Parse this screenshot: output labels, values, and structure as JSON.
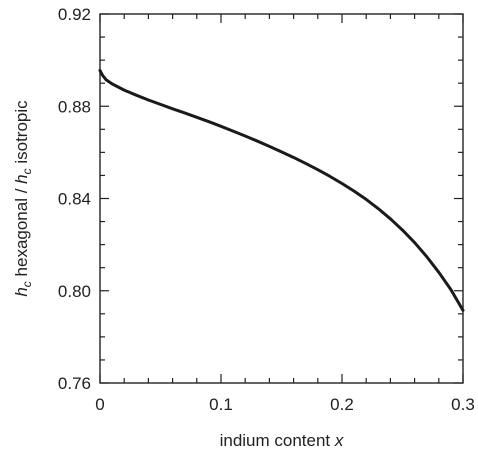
{
  "chart_data": {
    "type": "line",
    "title": "",
    "xlabel": {
      "text": "indium content ",
      "var": "x"
    },
    "ylabel": {
      "parts": [
        {
          "text": "h",
          "style": "italic"
        },
        {
          "text": "c",
          "style": "sub"
        },
        {
          "text": " hexagonal / ",
          "style": "normal"
        },
        {
          "text": "h",
          "style": "italic"
        },
        {
          "text": "c",
          "style": "sub"
        },
        {
          "text": " isotropic",
          "style": "normal"
        }
      ]
    },
    "xlim": [
      0,
      0.3
    ],
    "ylim": [
      0.76,
      0.92
    ],
    "xticks": [
      0,
      0.1,
      0.2,
      0.3
    ],
    "xtick_labels": [
      "0",
      "0.1",
      "0.2",
      "0.3"
    ],
    "yticks": [
      0.76,
      0.8,
      0.84,
      0.88,
      0.92
    ],
    "ytick_labels": [
      "0.76",
      "0.80",
      "0.84",
      "0.88",
      "0.92"
    ],
    "x_minor_step": 0.02,
    "y_minor_step": 0.01,
    "grid": false,
    "line_color": "#1a1a1a",
    "series": [
      {
        "x": [
          0.0,
          0.002,
          0.005,
          0.01,
          0.02,
          0.03,
          0.04,
          0.05,
          0.06,
          0.07,
          0.08,
          0.09,
          0.1,
          0.11,
          0.12,
          0.13,
          0.14,
          0.15,
          0.16,
          0.17,
          0.18,
          0.19,
          0.2,
          0.21,
          0.22,
          0.23,
          0.24,
          0.25,
          0.26,
          0.27,
          0.28,
          0.29,
          0.3
        ],
        "y": [
          0.8955,
          0.8935,
          0.8915,
          0.8897,
          0.887,
          0.8848,
          0.8827,
          0.8808,
          0.8789,
          0.8771,
          0.8752,
          0.8733,
          0.8713,
          0.8692,
          0.8671,
          0.8649,
          0.8626,
          0.8602,
          0.8578,
          0.8552,
          0.8525,
          0.8496,
          0.8465,
          0.8432,
          0.8396,
          0.8356,
          0.8312,
          0.8263,
          0.8209,
          0.8148,
          0.808,
          0.8005,
          0.7915
        ]
      }
    ]
  }
}
